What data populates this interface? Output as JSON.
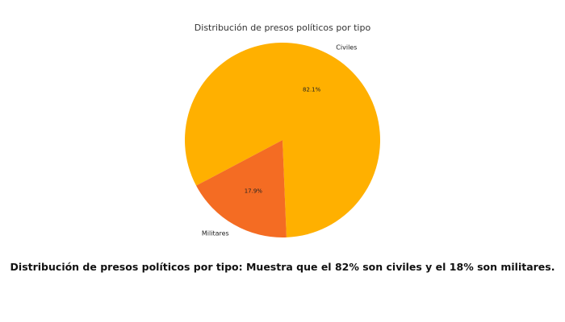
{
  "chart_data": {
    "type": "pie",
    "title": "Distribución de presos políticos por tipo",
    "slices": [
      {
        "label": "Civiles",
        "value": 82.1,
        "pct_label": "82.1%",
        "color": "#FFB000"
      },
      {
        "label": "Militares",
        "value": 17.9,
        "pct_label": "17.9%",
        "color": "#F46C23"
      }
    ]
  },
  "caption": "Distribución de presos políticos por tipo: Muestra que el 82% son civiles y el 18% son militares."
}
